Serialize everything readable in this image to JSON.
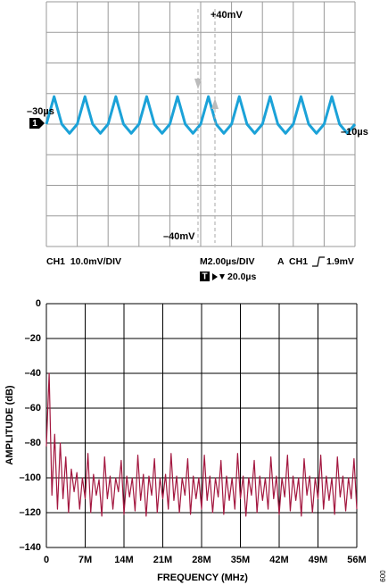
{
  "chart_data": [
    {
      "type": "line",
      "color": "#1ba2d8",
      "grid_color": "#9a9a9a",
      "grid": true,
      "tick_labels": false,
      "xlim": [
        -10,
        10
      ],
      "ylim": [
        -40,
        40
      ],
      "xticks": [
        -10,
        -8,
        -6,
        -4,
        -2,
        0,
        2,
        4,
        6,
        8,
        10
      ],
      "yticks": [
        -40,
        -30,
        -20,
        -10,
        0,
        10,
        20,
        30,
        40
      ],
      "x": [
        -10,
        -9.5,
        -9,
        -8.5,
        -8,
        -7.5,
        -7,
        -6.5,
        -6,
        -5.5,
        -5,
        -4.5,
        -4,
        -3.5,
        -3,
        -2.5,
        -2,
        -1.5,
        -1,
        -0.5,
        0,
        0.5,
        1,
        1.5,
        2,
        2.5,
        3,
        3.5,
        4,
        4.5,
        5,
        5.5,
        6,
        6.5,
        7,
        7.5,
        8,
        8.5,
        9,
        9.5,
        10
      ],
      "values": [
        0,
        9,
        0,
        -3,
        0,
        9,
        0,
        -3,
        0,
        9,
        0,
        -3,
        0,
        9,
        0,
        -3,
        0,
        9,
        0,
        -3,
        0,
        9,
        0,
        -3,
        0,
        9,
        0,
        -3,
        0,
        9,
        0,
        -3,
        0,
        9,
        0,
        -3,
        0,
        9,
        0,
        -3,
        0
      ],
      "marker": "1",
      "annotations": [
        "+40mV",
        "–30µs",
        "–10µs",
        "–40mV",
        "CH1  10.0mV/DIV",
        "M2.00µs/DIV",
        "A  CH1",
        "1.9mV",
        "20.0µs"
      ],
      "trigger_label": "T"
    },
    {
      "type": "line",
      "color": "#a3173f",
      "grid_color": "#000000",
      "grid": true,
      "tick_labels": true,
      "xlabel": "FREQUENCY (MHz)",
      "ylabel": "AMPLITUDE (dB)",
      "xlim": [
        0,
        56
      ],
      "ylim": [
        -140,
        0
      ],
      "xticks": [
        0,
        {
          "value": 7,
          "label": "7M"
        },
        {
          "value": 14,
          "label": "14M"
        },
        {
          "value": 21,
          "label": "21M"
        },
        {
          "value": 28,
          "label": "28M"
        },
        {
          "value": 35,
          "label": "35M"
        },
        {
          "value": 42,
          "label": "42M"
        },
        {
          "value": 49,
          "label": "49M"
        },
        {
          "value": 56,
          "label": "56M"
        }
      ],
      "yticks": [
        0,
        {
          "value": -20,
          "label": "–20"
        },
        {
          "value": -40,
          "label": "–40"
        },
        {
          "value": -60,
          "label": "–60"
        },
        {
          "value": -80,
          "label": "–80"
        },
        {
          "value": -100,
          "label": "–100"
        },
        {
          "value": -120,
          "label": "–120"
        },
        {
          "value": -140,
          "label": "–140"
        }
      ],
      "x": [
        0,
        0.5,
        1,
        1.5,
        2,
        2.5,
        3,
        3.5,
        4,
        4.5,
        5,
        5.5,
        6,
        6.5,
        7,
        7.5,
        8,
        8.5,
        9,
        9.5,
        10,
        10.5,
        11,
        11.5,
        12,
        12.5,
        13,
        13.5,
        14,
        14.5,
        15,
        15.5,
        16,
        16.5,
        17,
        17.5,
        18,
        18.5,
        19,
        19.5,
        20,
        20.5,
        21,
        21.5,
        22,
        22.5,
        23,
        23.5,
        24,
        24.5,
        25,
        25.5,
        26,
        26.5,
        27,
        27.5,
        28,
        28.5,
        29,
        29.5,
        30,
        30.5,
        31,
        31.5,
        32,
        32.5,
        33,
        33.5,
        34,
        34.5,
        35,
        35.5,
        36,
        36.5,
        37,
        37.5,
        38,
        38.5,
        39,
        39.5,
        40,
        40.5,
        41,
        41.5,
        42,
        42.5,
        43,
        43.5,
        44,
        44.5,
        45,
        45.5,
        46,
        46.5,
        47,
        47.5,
        48,
        48.5,
        49,
        49.5,
        50,
        50.5,
        51,
        51.5,
        52,
        52.5,
        53,
        53.5,
        54,
        54.5,
        55,
        55.5,
        56
      ],
      "values": [
        -82,
        -40,
        -110,
        -75,
        -118,
        -80,
        -112,
        -88,
        -120,
        -95,
        -108,
        -97,
        -118,
        -100,
        -112,
        -86,
        -120,
        -98,
        -110,
        -101,
        -122,
        -88,
        -112,
        -99,
        -118,
        -100,
        -108,
        -90,
        -121,
        -99,
        -111,
        -100,
        -119,
        -87,
        -113,
        -98,
        -122,
        -99,
        -110,
        -89,
        -120,
        -100,
        -112,
        -98,
        -118,
        -86,
        -113,
        -99,
        -120,
        -100,
        -110,
        -89,
        -121,
        -99,
        -112,
        -100,
        -118,
        -87,
        -113,
        -99,
        -120,
        -100,
        -111,
        -90,
        -121,
        -99,
        -113,
        -100,
        -118,
        -86,
        -112,
        -99,
        -122,
        -100,
        -110,
        -90,
        -120,
        -99,
        -113,
        -100,
        -118,
        -88,
        -112,
        -99,
        -121,
        -100,
        -111,
        -87,
        -119,
        -99,
        -113,
        -100,
        -122,
        -89,
        -110,
        -99,
        -120,
        -100,
        -112,
        -87,
        -118,
        -99,
        -113,
        -100,
        -121,
        -88,
        -111,
        -99,
        -119,
        -100,
        -112,
        -89,
        -118
      ]
    }
  ],
  "figure_code": "009"
}
